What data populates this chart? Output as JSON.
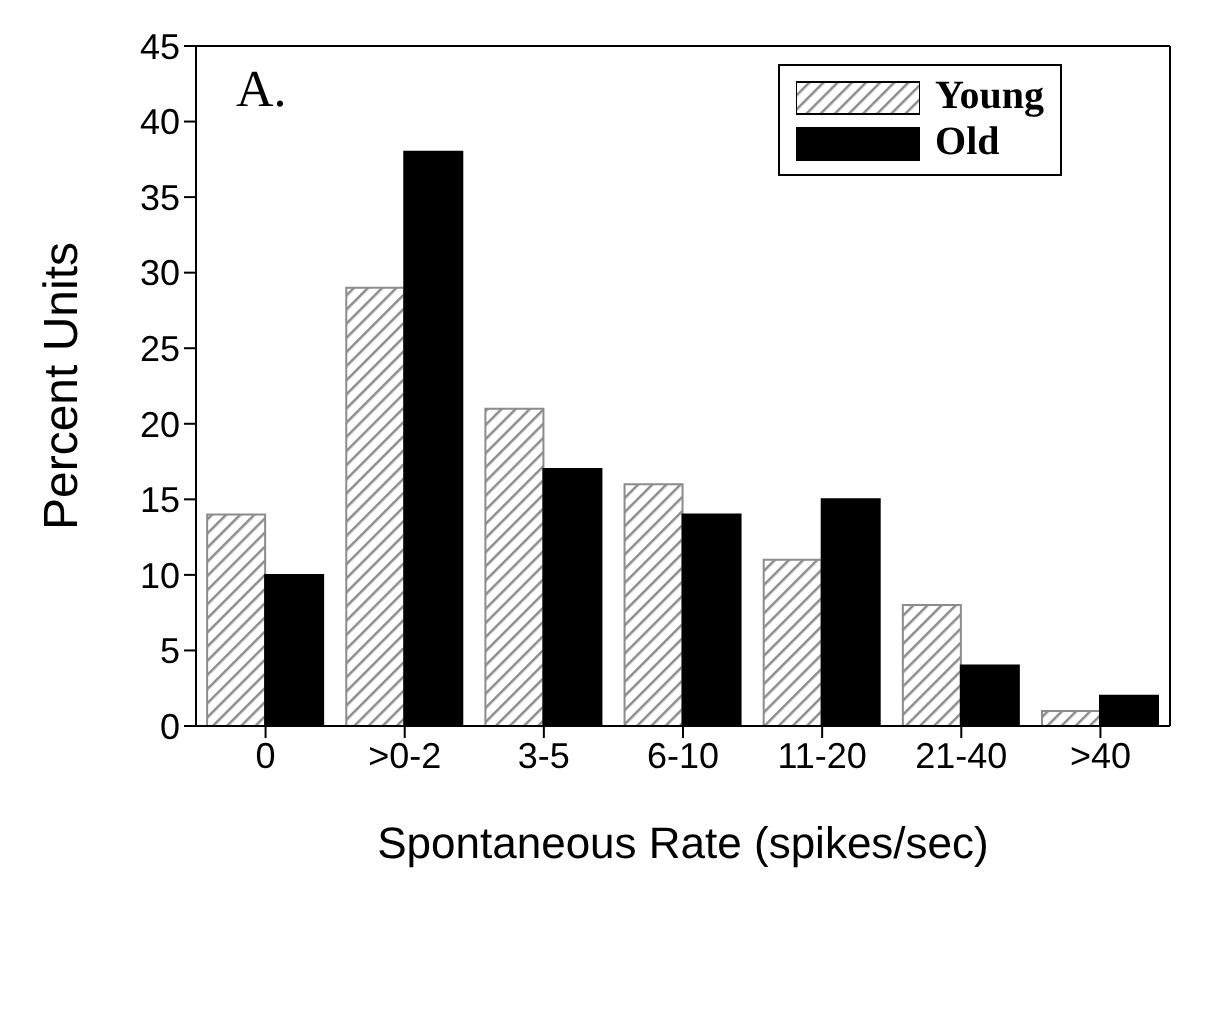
{
  "chart_data": {
    "type": "bar",
    "xlabel": "Spontaneous Rate (spikes/sec)",
    "ylabel": "Percent Units",
    "annotations": [
      "A."
    ],
    "categories": [
      "0",
      ">0-2",
      "3-5",
      "6-10",
      "11-20",
      "21-40",
      ">40"
    ],
    "series": [
      {
        "name": "Young",
        "color": "#8c8c8c",
        "values": [
          14,
          29,
          21,
          16,
          11,
          8,
          1
        ]
      },
      {
        "name": "Old",
        "color": "#000000",
        "values": [
          10,
          38,
          17,
          14,
          15,
          4,
          2
        ]
      }
    ],
    "ylim": [
      0,
      45
    ],
    "yticks": [
      0,
      5,
      10,
      15,
      20,
      25,
      30,
      35,
      40,
      45
    ],
    "legend": "top right"
  }
}
